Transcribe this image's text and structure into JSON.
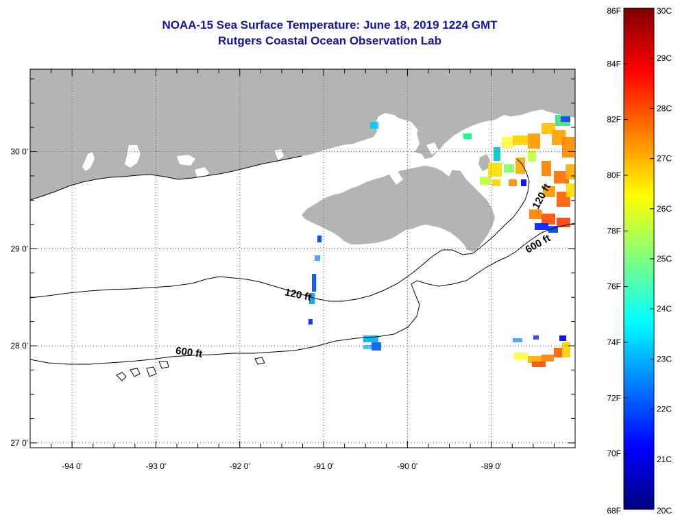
{
  "title_line1": "NOAA-15 Sea Surface Temperature:  June 18, 2019 1224 GMT",
  "title_line2": "Rutgers Coastal Ocean Observation Lab",
  "map": {
    "lon_labels": [
      "-94 0'",
      "-93 0'",
      "-92 0'",
      "-91 0'",
      "-90 0'",
      "-89 0'"
    ],
    "lon_values": [
      -94,
      -93,
      -92,
      -91,
      -90,
      -89
    ],
    "lat_labels": [
      "30 0'",
      "29 0'",
      "28 0'",
      "27 0'"
    ],
    "lat_values": [
      30,
      29,
      28,
      27
    ],
    "lon_range": [
      -94.5,
      -88.0
    ],
    "lat_range": [
      26.95,
      30.85
    ],
    "grid": "dotted",
    "land_color": "#b4b4b4",
    "contours": [
      {
        "label": "120 ft"
      },
      {
        "label": "600 ft"
      }
    ]
  },
  "colorbar": {
    "f_labels": [
      "86F",
      "84F",
      "82F",
      "80F",
      "78F",
      "76F",
      "74F",
      "72F",
      "70F",
      "68F"
    ],
    "c_labels": [
      "30C",
      "29C",
      "28C",
      "27C",
      "26C",
      "25C",
      "24C",
      "23C",
      "22C",
      "21C",
      "20C"
    ],
    "range_c": [
      20,
      30
    ],
    "colors": [
      "#00007f",
      "#0000ff",
      "#007fff",
      "#00ffff",
      "#7fff7f",
      "#ffff00",
      "#ff7f00",
      "#ff0000",
      "#7f0000"
    ]
  }
}
